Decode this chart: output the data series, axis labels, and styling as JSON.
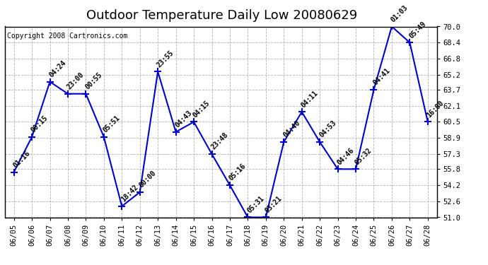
{
  "title": "Outdoor Temperature Daily Low 20080629",
  "copyright": "Copyright 2008 Cartronics.com",
  "background_color": "#ffffff",
  "line_color": "#0000cc",
  "marker_color": "#0000cc",
  "grid_color": "#aaaaaa",
  "ylim": [
    51.0,
    70.0
  ],
  "yticks": [
    51.0,
    52.6,
    54.2,
    55.8,
    57.3,
    58.9,
    60.5,
    62.1,
    63.7,
    65.2,
    66.8,
    68.4,
    70.0
  ],
  "dates": [
    "06/05",
    "06/06",
    "06/07",
    "06/08",
    "06/09",
    "06/10",
    "06/11",
    "06/12",
    "06/13",
    "06/14",
    "06/15",
    "06/16",
    "06/17",
    "06/18",
    "06/19",
    "06/20",
    "06/21",
    "06/22",
    "06/23",
    "06/24",
    "06/25",
    "06/26",
    "06/27",
    "06/28"
  ],
  "values": [
    55.5,
    59.0,
    64.5,
    63.3,
    63.3,
    59.0,
    52.1,
    53.5,
    65.5,
    59.5,
    60.5,
    57.3,
    54.2,
    51.0,
    51.0,
    58.5,
    61.5,
    58.5,
    55.8,
    55.8,
    63.7,
    70.0,
    68.4,
    60.5
  ],
  "labels": [
    "01:16",
    "00:15",
    "04:24",
    "23:00",
    "00:55",
    "05:51",
    "18:42",
    "00:00",
    "23:55",
    "04:43",
    "04:15",
    "23:48",
    "05:16",
    "05:31",
    "03:21",
    "04:40",
    "04:11",
    "04:53",
    "04:46",
    "05:32",
    "04:41",
    "01:03",
    "05:49",
    "16:00"
  ],
  "title_fontsize": 13,
  "label_fontsize": 7,
  "tick_fontsize": 7.5,
  "copyright_fontsize": 7
}
